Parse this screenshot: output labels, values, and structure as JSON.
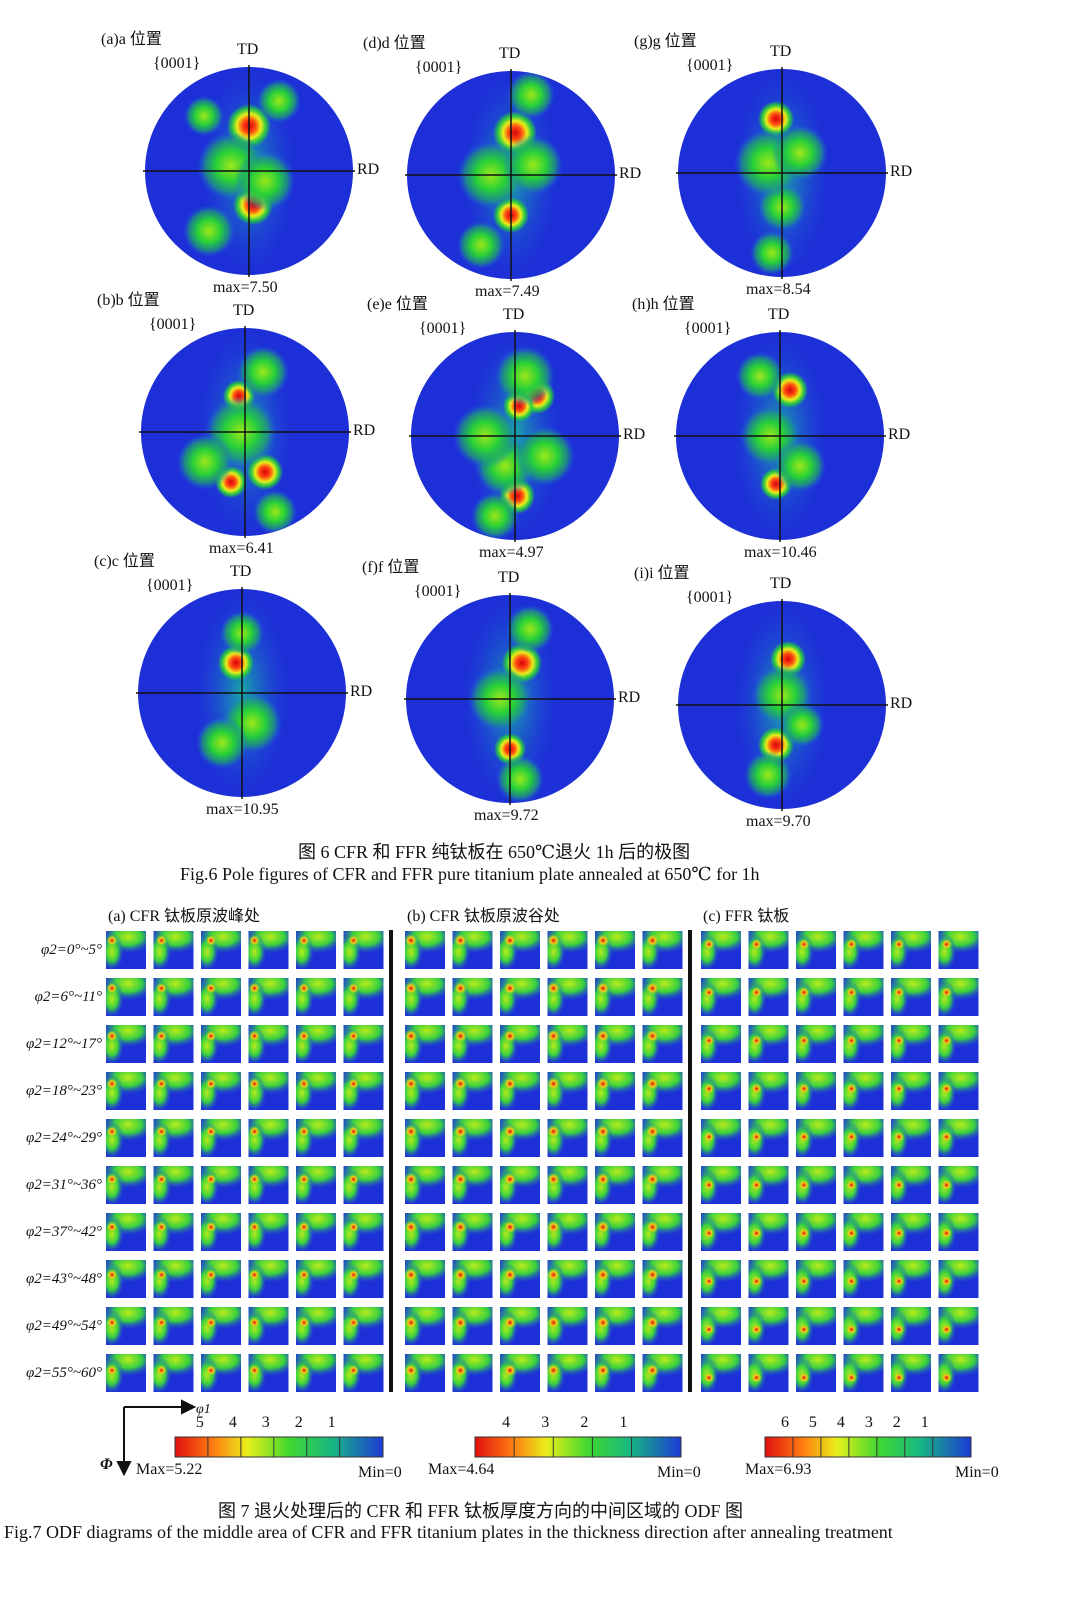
{
  "figure6": {
    "panels": [
      {
        "label": "(a)a 位置",
        "miller": "{0001}",
        "td": "TD",
        "rd": "RD",
        "max_label": "max=7.50"
      },
      {
        "label": "(d)d 位置",
        "miller": "{0001}",
        "td": "TD",
        "rd": "RD",
        "max_label": "max=7.49"
      },
      {
        "label": "(g)g 位置",
        "miller": "{0001}",
        "td": "TD",
        "rd": "RD",
        "max_label": "max=8.54"
      },
      {
        "label": "(b)b 位置",
        "miller": "{0001}",
        "td": "TD",
        "rd": "RD",
        "max_label": "max=6.41"
      },
      {
        "label": "(e)e 位置",
        "miller": "{0001}",
        "td": "TD",
        "rd": "RD",
        "max_label": "max=4.97"
      },
      {
        "label": "(h)h 位置",
        "miller": "{0001}",
        "td": "TD",
        "rd": "RD",
        "max_label": "max=10.46"
      },
      {
        "label": "(c)c 位置",
        "miller": "{0001}",
        "td": "TD",
        "rd": "RD",
        "max_label": "max=10.95"
      },
      {
        "label": "(f)f 位置",
        "miller": "{0001}",
        "td": "TD",
        "rd": "RD",
        "max_label": "max=9.72"
      },
      {
        "label": "(i)i 位置",
        "miller": "{0001}",
        "td": "TD",
        "rd": "RD",
        "max_label": "max=9.70"
      }
    ],
    "caption_cn": "图 6 CFR 和 FFR 纯钛板在 650℃退火 1h 后的极图",
    "caption_en": "Fig.6 Pole figures of CFR and FFR pure titanium plate annealed at 650℃ for 1h"
  },
  "figure7": {
    "groups": [
      {
        "title": "(a) CFR 钛板原波峰处",
        "colorbar": {
          "ticks": [
            "5",
            "4",
            "3",
            "2",
            "1"
          ],
          "max_label": "Max=5.22",
          "min_label": "Min=0"
        }
      },
      {
        "title": "(b) CFR 钛板原波谷处",
        "colorbar": {
          "ticks": [
            "4",
            "3",
            "2",
            "1"
          ],
          "max_label": "Max=4.64",
          "min_label": "Min=0"
        }
      },
      {
        "title": "(c) FFR 钛板",
        "colorbar": {
          "ticks": [
            "6",
            "5",
            "4",
            "3",
            "2",
            "1"
          ],
          "max_label": "Max=6.93",
          "min_label": "Min=0"
        }
      }
    ],
    "row_labels": [
      "φ2=0°~5°",
      "φ2=6°~11°",
      "φ2=12°~17°",
      "φ2=18°~23°",
      "φ2=24°~29°",
      "φ2=31°~36°",
      "φ2=37°~42°",
      "φ2=43°~48°",
      "φ2=49°~54°",
      "φ2=55°~60°"
    ],
    "axes": {
      "phi1": "φ1",
      "Phi": "Φ"
    },
    "caption_cn": "图 7 退火处理后的 CFR 和 FFR 钛板厚度方向的中间区域的 ODF 图",
    "caption_en": "Fig.7 ODF diagrams of the middle area of CFR and FFR titanium plates in the thickness direction after annealing treatment"
  },
  "colors": {
    "blue": "#1d2fd6",
    "green": "#27d23c",
    "yellow": "#e8f01a",
    "red": "#e0121a"
  }
}
